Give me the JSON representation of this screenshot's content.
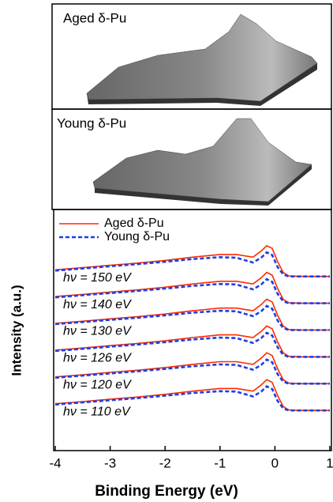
{
  "insets": [
    {
      "title": "Aged δ-Pu"
    },
    {
      "title": "Young δ-Pu"
    }
  ],
  "chart_data": {
    "type": "line",
    "xlabel": "Binding Energy (eV)",
    "ylabel": "Intensity (a.u.)",
    "xlim": [
      -4,
      1
    ],
    "xticks": [
      -4,
      -3,
      -2,
      -1,
      0,
      1
    ],
    "ylim": [
      0,
      9
    ],
    "x": [
      -4,
      -3.5,
      -3,
      -2.5,
      -2,
      -1.5,
      -1,
      -0.7,
      -0.4,
      -0.25,
      -0.15,
      -0.05,
      0.05,
      0.15,
      0.25,
      0.5,
      1
    ],
    "annotations": [
      "hν = 150 eV",
      "hν = 140 eV",
      "hν = 130 eV",
      "hν = 126 eV",
      "hν = 120 eV",
      "hν = 110 eV"
    ],
    "series": [
      {
        "name": "Aged δ-Pu",
        "color": "#ff2a00",
        "dash": false,
        "values": [
          [
            6.75,
            6.83,
            6.92,
            7,
            7.1,
            7.22,
            7.32,
            7.32,
            7.22,
            7.45,
            7.65,
            7.55,
            7.05,
            6.65,
            6.52,
            6.5,
            6.5
          ],
          [
            5.75,
            5.83,
            5.92,
            6,
            6.1,
            6.22,
            6.32,
            6.32,
            6.22,
            6.45,
            6.65,
            6.55,
            6.05,
            5.65,
            5.52,
            5.5,
            5.5
          ],
          [
            4.75,
            4.83,
            4.92,
            5,
            5.1,
            5.22,
            5.32,
            5.32,
            5.22,
            5.45,
            5.65,
            5.55,
            5.05,
            4.65,
            4.52,
            4.5,
            4.5
          ],
          [
            3.75,
            3.83,
            3.92,
            4,
            4.1,
            4.22,
            4.32,
            4.32,
            4.22,
            4.45,
            4.65,
            4.55,
            4.05,
            3.65,
            3.52,
            3.5,
            3.5
          ],
          [
            2.75,
            2.83,
            2.92,
            3,
            3.1,
            3.22,
            3.32,
            3.32,
            3.22,
            3.45,
            3.65,
            3.55,
            3.05,
            2.65,
            2.52,
            2.5,
            2.5
          ],
          [
            1.75,
            1.83,
            1.92,
            2,
            2.1,
            2.22,
            2.32,
            2.32,
            2.22,
            2.45,
            2.65,
            2.55,
            2.05,
            1.65,
            1.52,
            1.5,
            1.5
          ]
        ]
      },
      {
        "name": "Young δ-Pu",
        "color": "#1f3fe0",
        "dash": true,
        "values": [
          [
            6.72,
            6.8,
            6.88,
            6.96,
            7.05,
            7.15,
            7.22,
            7.2,
            7.02,
            7.2,
            7.4,
            7.3,
            6.85,
            6.58,
            6.5,
            6.5,
            6.5
          ],
          [
            5.72,
            5.8,
            5.88,
            5.96,
            6.05,
            6.15,
            6.22,
            6.2,
            6.02,
            6.2,
            6.4,
            6.3,
            5.85,
            5.58,
            5.5,
            5.5,
            5.5
          ],
          [
            4.72,
            4.8,
            4.88,
            4.96,
            5.05,
            5.15,
            5.22,
            5.2,
            5.02,
            5.2,
            5.4,
            5.3,
            4.85,
            4.58,
            4.5,
            4.5,
            4.5
          ],
          [
            3.72,
            3.8,
            3.88,
            3.96,
            4.05,
            4.15,
            4.22,
            4.2,
            4.02,
            4.2,
            4.4,
            4.3,
            3.85,
            3.58,
            3.5,
            3.5,
            3.5
          ],
          [
            2.72,
            2.8,
            2.88,
            2.96,
            3.05,
            3.15,
            3.22,
            3.2,
            3.02,
            3.2,
            3.4,
            3.3,
            2.85,
            2.58,
            2.5,
            2.5,
            2.5
          ],
          [
            1.72,
            1.8,
            1.88,
            1.96,
            2.05,
            2.15,
            2.22,
            2.2,
            2.02,
            2.2,
            2.4,
            2.3,
            1.85,
            1.58,
            1.5,
            1.5,
            1.5
          ]
        ]
      }
    ]
  }
}
